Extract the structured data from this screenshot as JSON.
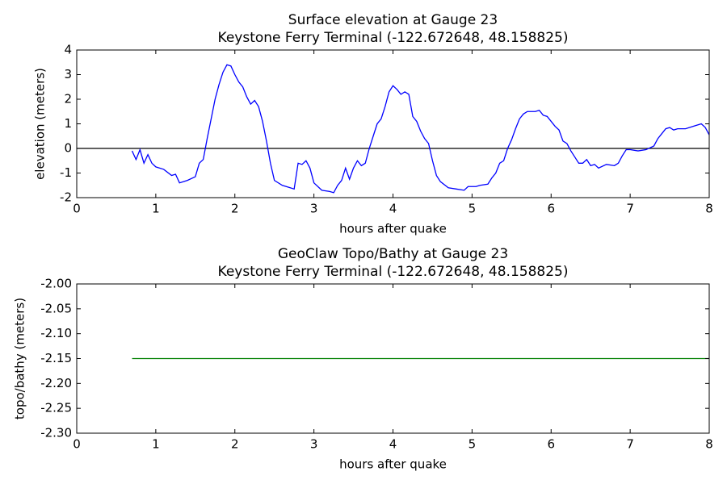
{
  "chart_data": [
    {
      "type": "line",
      "title": "Surface elevation at Gauge 23",
      "subtitle": "Keystone Ferry Terminal  (-122.672648, 48.158825)",
      "x_label": "hours after quake",
      "y_label": "elevation (meters)",
      "xlim": [
        0,
        8
      ],
      "xticks": [
        0,
        1,
        2,
        3,
        4,
        5,
        6,
        7,
        8
      ],
      "ylim": [
        -2,
        4
      ],
      "yticks": [
        -2,
        -1,
        0,
        1,
        2,
        3,
        4
      ],
      "hline": 0,
      "color": "#0000ff",
      "x": [
        0.7,
        0.75,
        0.8,
        0.85,
        0.9,
        0.95,
        1.0,
        1.1,
        1.2,
        1.25,
        1.3,
        1.4,
        1.5,
        1.55,
        1.6,
        1.65,
        1.7,
        1.75,
        1.8,
        1.85,
        1.9,
        1.95,
        2.0,
        2.05,
        2.1,
        2.15,
        2.2,
        2.25,
        2.3,
        2.35,
        2.4,
        2.45,
        2.5,
        2.6,
        2.7,
        2.75,
        2.8,
        2.85,
        2.9,
        2.95,
        3.0,
        3.1,
        3.2,
        3.25,
        3.3,
        3.35,
        3.4,
        3.45,
        3.5,
        3.55,
        3.6,
        3.65,
        3.7,
        3.75,
        3.8,
        3.85,
        3.9,
        3.95,
        4.0,
        4.05,
        4.1,
        4.15,
        4.2,
        4.25,
        4.3,
        4.35,
        4.4,
        4.45,
        4.5,
        4.55,
        4.6,
        4.7,
        4.8,
        4.9,
        4.95,
        5.05,
        5.1,
        5.2,
        5.25,
        5.3,
        5.35,
        5.4,
        5.45,
        5.5,
        5.55,
        5.6,
        5.65,
        5.7,
        5.8,
        5.85,
        5.9,
        5.95,
        6.0,
        6.05,
        6.1,
        6.15,
        6.2,
        6.25,
        6.3,
        6.35,
        6.4,
        6.45,
        6.5,
        6.55,
        6.6,
        6.7,
        6.8,
        6.85,
        6.9,
        6.95,
        7.0,
        7.1,
        7.2,
        7.3,
        7.35,
        7.4,
        7.45,
        7.5,
        7.55,
        7.6,
        7.7,
        7.8,
        7.9,
        7.95,
        8.0
      ],
      "values": [
        -0.1,
        -0.45,
        -0.05,
        -0.6,
        -0.25,
        -0.6,
        -0.75,
        -0.85,
        -1.1,
        -1.05,
        -1.4,
        -1.3,
        -1.15,
        -0.6,
        -0.45,
        0.4,
        1.2,
        2.0,
        2.6,
        3.1,
        3.4,
        3.35,
        3.0,
        2.7,
        2.5,
        2.1,
        1.8,
        1.95,
        1.7,
        1.1,
        0.3,
        -0.6,
        -1.3,
        -1.5,
        -1.6,
        -1.65,
        -0.6,
        -0.65,
        -0.5,
        -0.8,
        -1.4,
        -1.7,
        -1.75,
        -1.8,
        -1.5,
        -1.3,
        -0.8,
        -1.25,
        -0.8,
        -0.5,
        -0.7,
        -0.6,
        0.0,
        0.5,
        1.0,
        1.2,
        1.7,
        2.3,
        2.55,
        2.4,
        2.2,
        2.3,
        2.2,
        1.3,
        1.1,
        0.7,
        0.4,
        0.2,
        -0.5,
        -1.1,
        -1.35,
        -1.6,
        -1.65,
        -1.7,
        -1.55,
        -1.55,
        -1.5,
        -1.45,
        -1.2,
        -1.0,
        -0.6,
        -0.5,
        0.0,
        0.35,
        0.8,
        1.2,
        1.4,
        1.5,
        1.5,
        1.55,
        1.35,
        1.3,
        1.1,
        0.9,
        0.75,
        0.3,
        0.2,
        -0.1,
        -0.35,
        -0.6,
        -0.6,
        -0.45,
        -0.7,
        -0.65,
        -0.8,
        -0.65,
        -0.7,
        -0.6,
        -0.3,
        -0.05,
        -0.05,
        -0.1,
        -0.05,
        0.1,
        0.4,
        0.6,
        0.8,
        0.85,
        0.75,
        0.8,
        0.8,
        0.9,
        1.0,
        0.85,
        0.55
      ]
    },
    {
      "type": "line",
      "title": "GeoClaw Topo/Bathy at Gauge 23",
      "subtitle": "Keystone Ferry Terminal  (-122.672648, 48.158825)",
      "x_label": "hours after quake",
      "y_label": "topo/bathy (meters)",
      "xlim": [
        0,
        8
      ],
      "xticks": [
        0,
        1,
        2,
        3,
        4,
        5,
        6,
        7,
        8
      ],
      "ylim": [
        -2.3,
        -2.0
      ],
      "yticks": [
        {
          "value": -2.3,
          "label": "-2.30"
        },
        {
          "value": -2.25,
          "label": "-2.25"
        },
        {
          "value": -2.2,
          "label": "-2.20"
        },
        {
          "value": -2.15,
          "label": "-2.15"
        },
        {
          "value": -2.1,
          "label": "-2.10"
        },
        {
          "value": -2.05,
          "label": "-2.05"
        },
        {
          "value": -2.0,
          "label": "-2.00"
        }
      ],
      "color": "#008000",
      "x": [
        0.7,
        8.0
      ],
      "values": [
        -2.15,
        -2.15
      ]
    }
  ]
}
